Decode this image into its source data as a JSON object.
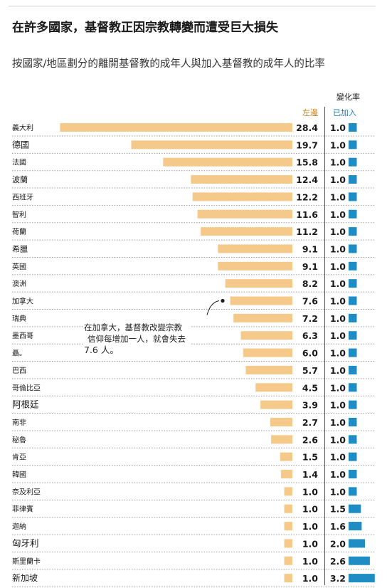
{
  "title": "在許多國家，基督教正因宗教轉變而遭受巨大損失",
  "subtitle": "按國家/地區劃分的離開基督教的成年人與加入基督教的成年人的比率",
  "header": {
    "rate_label": "變化率",
    "left_label": "左邊",
    "joined_label": "已加入"
  },
  "annotation": {
    "line1": "在加拿大，基督教改變宗教",
    "line2": "信仰每增加一人，就會失去",
    "line3": "7.6 人。"
  },
  "colors": {
    "left_bar": "#f5c98a",
    "joined_bar": "#1f8dc4",
    "divider": "#555555",
    "row_rule": "#9a9a9a"
  },
  "chart_data": {
    "type": "bar",
    "categories": [
      "義大利",
      "德國",
      "法國",
      "波蘭",
      "西班牙",
      "智利",
      "荷蘭",
      "希臘",
      "英國",
      "澳洲",
      "加拿大",
      "瑞典",
      "墨西哥",
      "聶。",
      "巴西",
      "哥倫比亞",
      "阿根廷",
      "南非",
      "秘魯",
      "肯亞",
      "韓國",
      "奈及利亞",
      "菲律賓",
      "迦納",
      "匈牙利",
      "斯里蘭卡",
      "新加坡"
    ],
    "series": [
      {
        "name": "左邊",
        "values": [
          28.4,
          19.7,
          15.8,
          12.4,
          12.2,
          11.6,
          11.2,
          9.1,
          9.1,
          8.2,
          7.6,
          7.2,
          6.3,
          6.0,
          5.7,
          4.5,
          3.9,
          2.7,
          2.6,
          1.5,
          1.4,
          1.0,
          1.0,
          1.0,
          1.0,
          1.0,
          1.0
        ]
      },
      {
        "name": "已加入",
        "values": [
          1.0,
          1.0,
          1.0,
          1.0,
          1.0,
          1.0,
          1.0,
          1.0,
          1.0,
          1.0,
          1.0,
          1.0,
          1.0,
          1.0,
          1.0,
          1.0,
          1.0,
          1.0,
          1.0,
          1.0,
          1.0,
          1.0,
          1.5,
          1.6,
          2.0,
          2.6,
          3.2
        ]
      }
    ],
    "left_labels": [
      "28.4",
      "19.7",
      "15.8",
      "12.4",
      "12.2",
      "11.6",
      "11.2",
      "9.1",
      "9.1",
      "8.2",
      "7.6",
      "7.2",
      "6.3",
      "6.0",
      "5.7",
      "4.5",
      "3.9",
      "2.7",
      "2.6",
      "1.5",
      "1.4",
      "1.0",
      "1.0",
      "1.0",
      "1.0",
      "1.0",
      "1.0"
    ],
    "joined_labels": [
      "1.0",
      "1.0",
      "1.0",
      "1.0",
      "1.0",
      "1.0",
      "1.0",
      "1.0",
      "1.0",
      "1.0",
      "1.0",
      "1.0",
      "1.0",
      "1.0",
      "1.0",
      "1.0",
      "1.0",
      "1.0",
      "1.0",
      "1.0",
      "1.0",
      "1.0",
      "1.5",
      "1.6",
      "2.0",
      "2.6",
      "3.2"
    ],
    "grid": false,
    "legend": "none"
  }
}
